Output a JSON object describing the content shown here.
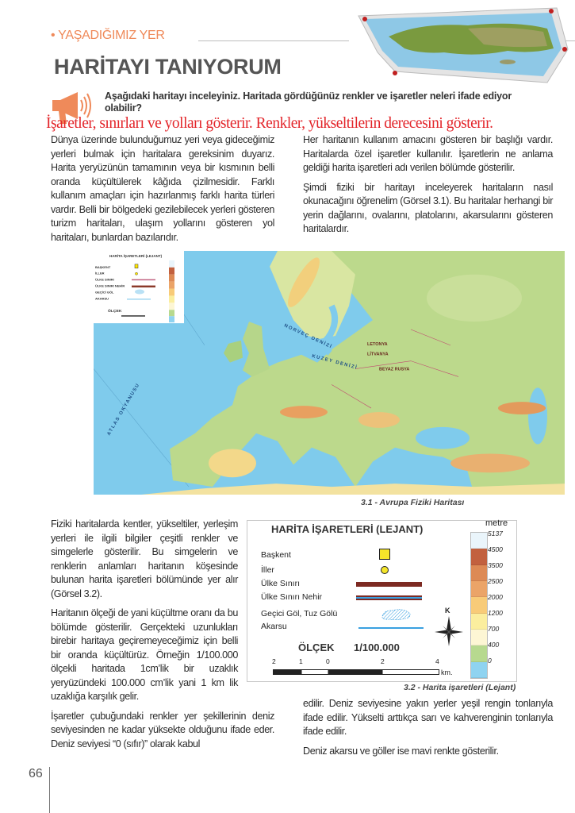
{
  "header": {
    "section_label": "• YAŞADIĞIMIZ YER",
    "title": "HARİTAYI TANIYORUM",
    "question": "Aşağıdaki haritayı inceleyiniz. Haritada gördüğünüz renkler ve işaretler neleri ifade ediyor olabilir?",
    "handwritten_answer": "İşaretler, sınırları ve yolları gösterir. Renkler, yükseltilerin derecesini gösterir."
  },
  "top_left_column": {
    "paragraphs": [
      "Dünya üzerinde bulunduğumuz yeri veya gideceğimiz yerleri bulmak için haritalara gereksinim duyarız. Harita yeryüzünün tamamının veya bir kısmının belli oranda küçültülerek kâğıda çizilmesidir. Farklı kullanım amaçları için hazırlanmış farklı harita türleri vardır. Belli bir bölgedeki gezilebilecek yerleri gösteren turizm haritaları, ulaşım yollarını gösteren yol haritaları, bunlardan bazılarıdır."
    ]
  },
  "top_right_column": {
    "paragraphs": [
      "Her haritanın kullanım amacını gösteren bir başlığı vardır. Haritalarda özel işaretler kullanılır. İşaretlerin ne anlama geldiği harita işaretleri adı verilen bölümde gösterilir.",
      "Şimdi fiziki bir haritayı inceleyerek haritaların nasıl okunacağını öğrenelim (Görsel 3.1). Bu haritalar herhangi bir yerin dağlarını, ovalarını, platolarını, akarsularını gösteren haritalardır."
    ]
  },
  "europe_map": {
    "caption": "3.1 - Avrupa Fiziki Haritası",
    "mini_legend_title": "HARİTA İŞARETLERİ (LEJANT)",
    "mini_legend_items": [
      "BAŞKENT",
      "İLLER",
      "ÜLKE SINIRI",
      "ÜLKE SINIRI NEHİR",
      "GEÇİCİ GÖL",
      "AKARSU"
    ],
    "mini_scale_label": "ÖLÇEK",
    "labels": [
      "NORVEÇ DENİZİ",
      "KUZEY DENİZİ",
      "ATLAS OKYANUSU",
      "LETONYA",
      "LİTVANYA",
      "BEYAZ RUSYA"
    ]
  },
  "bottom_left_column": {
    "paragraphs": [
      "Fiziki haritalarda kentler, yükseltiler, yerleşim yerleri ile ilgili bilgiler çeşitli renkler ve simgelerle gösterilir. Bu simgelerin ve renklerin anlamları haritanın köşesinde bulunan harita işaretleri bölümünde yer alır (Görsel 3.2).",
      "Haritanın ölçeği de yani küçültme oranı da bu bölümde gösterilir. Gerçekteki uzunlukları birebir haritaya geçiremeyeceğimiz için belli bir oranda küçültürüz. Örneğin 1/100.000 ölçekli haritada 1cm’lik bir uzaklık yeryüzündeki 100.000 cm’lik yani 1 km lik uzaklığa karşılık gelir."
    ],
    "wide_paragraph": "İşaretler çubuğundaki renkler yer şekillerinin deniz seviyesinden ne kadar yüksekte olduğunu ifade eder. Deniz seviyesi “0 (sıfır)” olarak kabul"
  },
  "legend": {
    "title": "HARİTA İŞARETLERİ (LEJANT)",
    "items": [
      {
        "label": "Başkent",
        "symbol": "yellow-square"
      },
      {
        "label": "İller",
        "symbol": "yellow-circle"
      },
      {
        "label": "Ülke Sınırı",
        "symbol": "brown-line"
      },
      {
        "label": "Ülke Sınırı Nehir",
        "symbol": "brown-blue-line"
      },
      {
        "label": "Geçici Göl, Tuz Gölü",
        "symbol": "hatched-lake"
      },
      {
        "label": "Akarsu",
        "symbol": "blue-line"
      }
    ],
    "compass_label": "K",
    "scale_title": "ÖLÇEK",
    "scale_value": "1/100.000",
    "scale_ticks": [
      "2",
      "1",
      "0",
      "2",
      "4"
    ],
    "scale_unit": "km.",
    "elevation_unit": "metre",
    "elevation_labels": [
      "5137",
      "4500",
      "3500",
      "2500",
      "2000",
      "1200",
      "700",
      "400",
      "0"
    ],
    "elevation_colors": [
      "#eaf5fb",
      "#c2613f",
      "#dd8a55",
      "#eba468",
      "#f8cb78",
      "#fbee9e",
      "#fdf6d4",
      "#b7d98f",
      "#8fd3f0"
    ],
    "caption": "3.2 - Harita işaretleri (Lejant)"
  },
  "bottom_right_column": {
    "paragraphs": [
      "edilir. Deniz seviyesine yakın yerler yeşil rengin tonlarıyla ifade edilir. Yükselti arttıkça sarı ve kahverenginin tonlarıyla ifade edilir.",
      "Deniz akarsu ve göller ise mavi renkte gösterilir."
    ]
  },
  "footer": {
    "page_number": "66"
  },
  "colors": {
    "accent": "#ef8a5a",
    "handwriting": "#e3262b",
    "title": "#555555"
  }
}
